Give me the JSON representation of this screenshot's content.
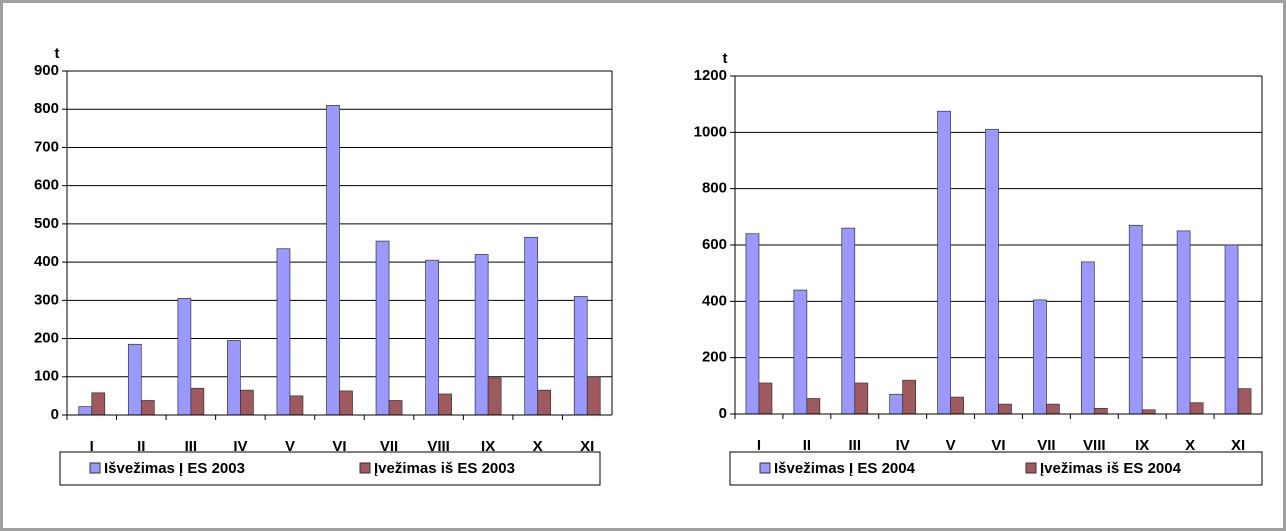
{
  "chart_data": [
    {
      "type": "bar",
      "y_label": "t",
      "categories": [
        "I",
        "II",
        "III",
        "IV",
        "V",
        "VI",
        "VII",
        "VIII",
        "IX",
        "X",
        "XI"
      ],
      "series": [
        {
          "name": "Išvežimas Į ES 2003",
          "color": "#9999ff",
          "values": [
            22,
            185,
            305,
            195,
            435,
            810,
            455,
            405,
            420,
            465,
            310
          ]
        },
        {
          "name": "Įvežimas iš ES 2003",
          "color": "#a0595c",
          "values": [
            58,
            38,
            70,
            65,
            50,
            63,
            38,
            55,
            97,
            65,
            100
          ]
        }
      ],
      "ylim": [
        0,
        900
      ],
      "yticks": [
        0,
        100,
        200,
        300,
        400,
        500,
        600,
        700,
        800,
        900
      ],
      "grid": true,
      "legend": "bottom"
    },
    {
      "type": "bar",
      "y_label": "t",
      "categories": [
        "I",
        "II",
        "III",
        "IV",
        "V",
        "VI",
        "VII",
        "VIII",
        "IX",
        "X",
        "XI"
      ],
      "series": [
        {
          "name": "Išvežimas Į ES 2004",
          "color": "#9999ff",
          "values": [
            640,
            440,
            660,
            70,
            1075,
            1010,
            405,
            540,
            670,
            650,
            600
          ]
        },
        {
          "name": "Įvežimas iš ES 2004",
          "color": "#a0595c",
          "values": [
            110,
            55,
            110,
            120,
            60,
            35,
            35,
            20,
            15,
            40,
            90
          ]
        }
      ],
      "ylim": [
        0,
        1200
      ],
      "yticks": [
        0,
        200,
        400,
        600,
        800,
        1000,
        1200
      ],
      "grid": true,
      "legend": "bottom"
    }
  ]
}
